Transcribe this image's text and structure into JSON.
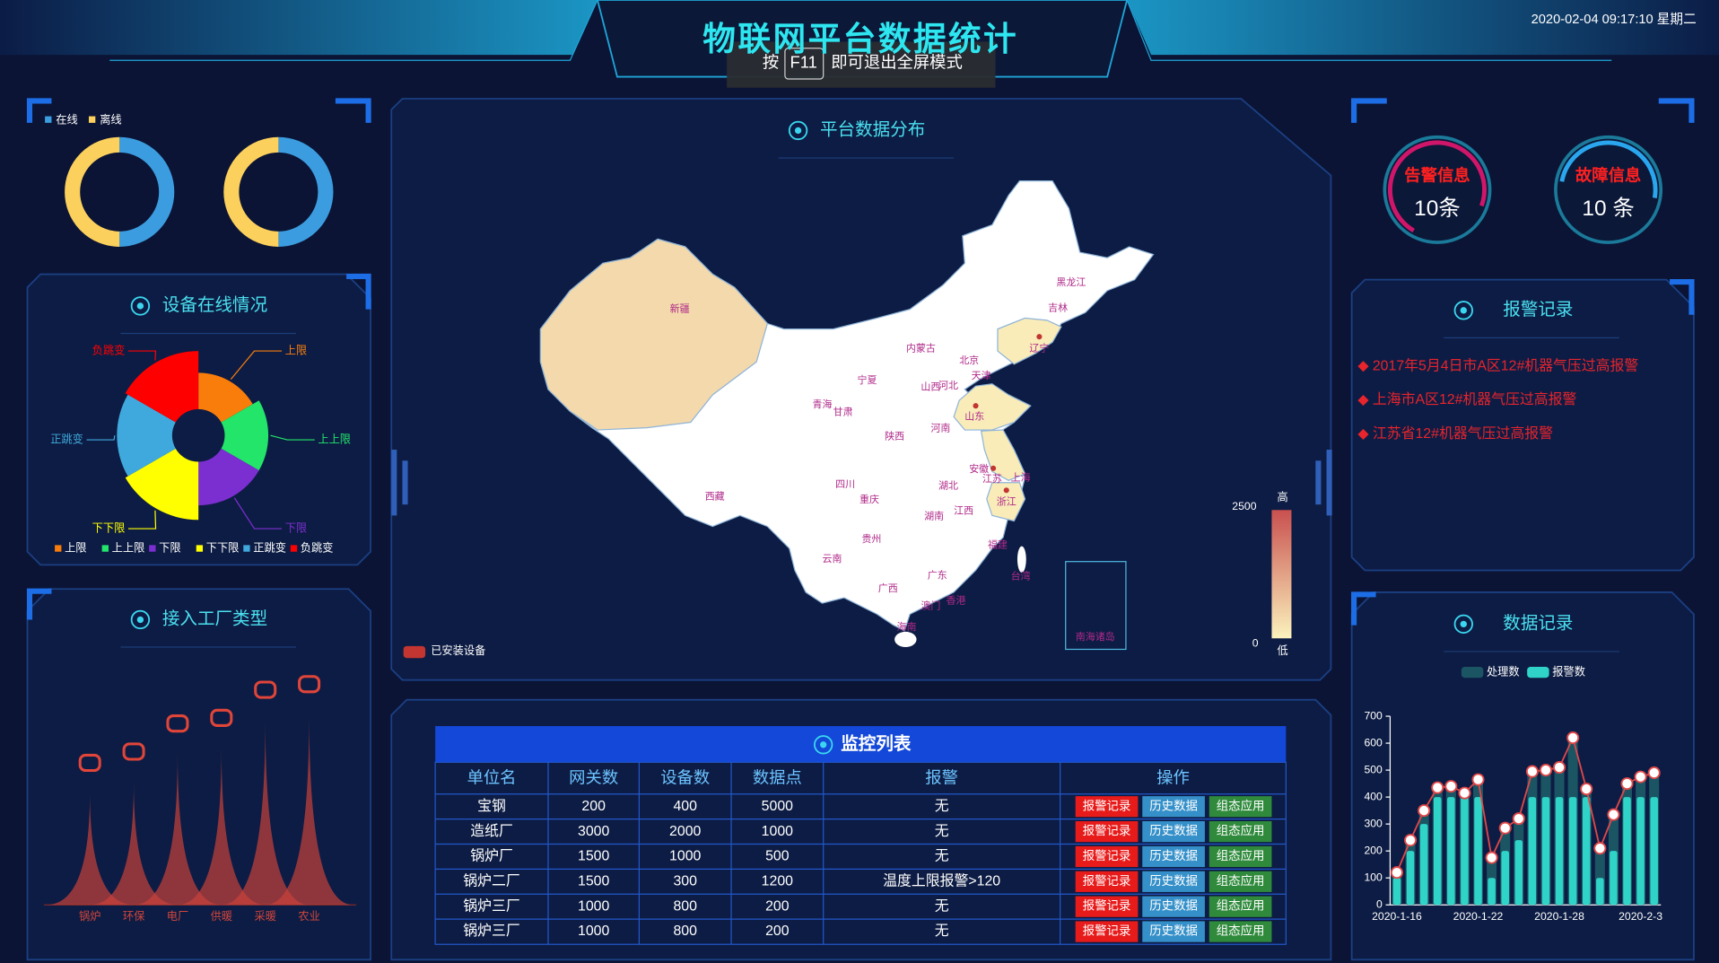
{
  "header": {
    "title": "物联网平台数据统计",
    "datetime": "2020-02-04 09:17:10 星期二"
  },
  "fullscreen_notice": {
    "prefix": "按",
    "key": "F11",
    "suffix": "即可退出全屏模式"
  },
  "status_donuts": {
    "legend": [
      {
        "name": "在线",
        "color": "#3b9de0"
      },
      {
        "name": "离线",
        "color": "#fcd05c"
      }
    ],
    "charts": [
      {
        "type": "donut",
        "values": [
          50,
          50
        ]
      },
      {
        "type": "donut",
        "values": [
          50,
          50
        ]
      }
    ]
  },
  "device_online": {
    "title": "设备在线情况",
    "chart": {
      "type": "pie",
      "rose": true,
      "categories": [
        "上限",
        "上上限",
        "下限",
        "下下限",
        "正跳变",
        "负跳变"
      ],
      "values": [
        25,
        30,
        30,
        40,
        38,
        40
      ],
      "colors": [
        "#f97d0b",
        "#22e56a",
        "#7b2fd0",
        "#ffff00",
        "#3fa9dd",
        "#ff0000"
      ]
    }
  },
  "factory_types": {
    "title": "接入工厂类型",
    "chart": {
      "type": "pictorial-bar",
      "categories": [
        "锅炉",
        "环保",
        "电厂",
        "供暖",
        "采暖",
        "农业"
      ],
      "values": [
        100,
        110,
        135,
        140,
        165,
        170
      ],
      "ylim": [
        0,
        200
      ],
      "color": "#c8423a"
    }
  },
  "platform_map": {
    "title": "平台数据分布",
    "legend": "已安装设备",
    "legend_color": "#c23531",
    "visual_map": {
      "min": 0,
      "max": 2500,
      "high_label": "高",
      "low_label": "低",
      "colors": [
        "#fbf3bd",
        "#c9504f"
      ]
    },
    "provinces": [
      {
        "name": "新疆",
        "value": 400
      },
      {
        "name": "西藏"
      },
      {
        "name": "青海"
      },
      {
        "name": "甘肃"
      },
      {
        "name": "宁夏"
      },
      {
        "name": "内蒙古"
      },
      {
        "name": "黑龙江"
      },
      {
        "name": "吉林"
      },
      {
        "name": "辽宁",
        "value": 100,
        "installed": true
      },
      {
        "name": "北京"
      },
      {
        "name": "天津"
      },
      {
        "name": "河北"
      },
      {
        "name": "山西"
      },
      {
        "name": "山东",
        "value": 100,
        "installed": true
      },
      {
        "name": "陕西"
      },
      {
        "name": "河南"
      },
      {
        "name": "四川"
      },
      {
        "name": "重庆"
      },
      {
        "name": "湖北"
      },
      {
        "name": "安徽"
      },
      {
        "name": "江苏",
        "value": 100,
        "installed": true
      },
      {
        "name": "上海"
      },
      {
        "name": "浙江",
        "value": 100,
        "installed": true
      },
      {
        "name": "湖南"
      },
      {
        "name": "江西"
      },
      {
        "name": "贵州"
      },
      {
        "name": "云南"
      },
      {
        "name": "广西"
      },
      {
        "name": "广东"
      },
      {
        "name": "福建"
      },
      {
        "name": "台湾"
      },
      {
        "name": "香港"
      },
      {
        "name": "澳门"
      },
      {
        "name": "海南"
      },
      {
        "name": "南海诸岛"
      }
    ]
  },
  "gauges": [
    {
      "label": "告警信息",
      "count": "10条"
    },
    {
      "label": "故障信息",
      "count": "10 条"
    }
  ],
  "alarm_records": {
    "title": "报警记录",
    "items": [
      "2017年5月4日市A区12#机器气压过高报警",
      "上海市A区12#机器气压过高报警",
      "江苏省12#机器气压过高报警"
    ]
  },
  "data_records": {
    "title": "数据记录",
    "chart": {
      "type": "bar",
      "categories": [
        "2020-1-16",
        null,
        null,
        null,
        null,
        null,
        "2020-1-22",
        null,
        null,
        null,
        null,
        null,
        "2020-1-28",
        null,
        null,
        null,
        null,
        null,
        "2020-2-3",
        null
      ],
      "series": [
        {
          "name": "处理数",
          "color": "#1b5563",
          "line_color": "#e04848",
          "values": [
            120,
            240,
            350,
            435,
            440,
            415,
            465,
            175,
            285,
            320,
            495,
            500,
            510,
            620,
            430,
            210,
            335,
            450,
            475,
            490
          ]
        },
        {
          "name": "报警数",
          "color": "#2fd3c8",
          "values": [
            100,
            200,
            300,
            400,
            400,
            400,
            400,
            100,
            200,
            240,
            400,
            400,
            400,
            400,
            400,
            100,
            200,
            400,
            400,
            400
          ]
        }
      ],
      "ylim": [
        0,
        700
      ],
      "yticks": [
        0,
        100,
        200,
        300,
        400,
        500,
        600,
        700
      ]
    }
  },
  "monitor_table": {
    "title": "监控列表",
    "columns": [
      "单位名",
      "网关数",
      "设备数",
      "数据点",
      "报警",
      "操作"
    ],
    "rows": [
      [
        "宝钢",
        200,
        400,
        5000,
        "无"
      ],
      [
        "造纸厂",
        3000,
        2000,
        1000,
        "无"
      ],
      [
        "锅炉厂",
        1500,
        1000,
        500,
        "无"
      ],
      [
        "锅炉二厂",
        1500,
        300,
        1200,
        "温度上限报警>120"
      ],
      [
        "锅炉三厂",
        1000,
        800,
        200,
        "无"
      ],
      [
        "锅炉三厂",
        1000,
        800,
        200,
        "无"
      ]
    ],
    "actions": [
      "报警记录",
      "历史数据",
      "组态应用"
    ],
    "action_colors": [
      "#e81b1b",
      "#3590c9",
      "#2f8a3c"
    ]
  }
}
